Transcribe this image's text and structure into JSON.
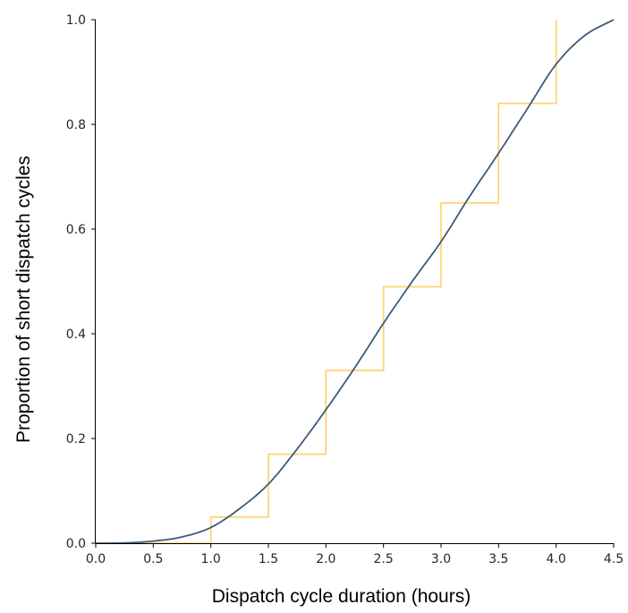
{
  "chart_data": {
    "type": "line",
    "title": "",
    "xlabel": "Dispatch cycle duration (hours)",
    "ylabel": "Proportion of short dispatch cycles",
    "xlim": [
      0.0,
      4.5
    ],
    "ylim": [
      0.0,
      1.0
    ],
    "x_ticks": [
      "0.0",
      "0.5",
      "1.0",
      "1.5",
      "2.0",
      "2.5",
      "3.0",
      "3.5",
      "4.0",
      "4.5"
    ],
    "y_ticks": [
      "0.0",
      "0.2",
      "0.4",
      "0.6",
      "0.8",
      "1.0"
    ],
    "grid": false,
    "series": [
      {
        "type": "step",
        "color": "#ffd166",
        "x": [
          0.0,
          1.0,
          1.0,
          1.5,
          1.5,
          2.0,
          2.0,
          2.5,
          2.5,
          3.0,
          3.0,
          3.5,
          3.5,
          4.0,
          4.0
        ],
        "y": [
          0.0,
          0.0,
          0.05,
          0.05,
          0.17,
          0.17,
          0.33,
          0.33,
          0.49,
          0.49,
          0.65,
          0.65,
          0.84,
          0.84,
          1.0
        ]
      },
      {
        "type": "line",
        "color": "#3d5a7a",
        "x": [
          0.0,
          0.25,
          0.5,
          0.75,
          1.0,
          1.25,
          1.5,
          1.75,
          2.0,
          2.25,
          2.5,
          2.75,
          3.0,
          3.25,
          3.5,
          3.75,
          4.0,
          4.25,
          4.5
        ],
        "y": [
          0.0,
          0.0005,
          0.004,
          0.012,
          0.03,
          0.066,
          0.113,
          0.18,
          0.255,
          0.335,
          0.42,
          0.5,
          0.576,
          0.663,
          0.745,
          0.83,
          0.915,
          0.97,
          1.0
        ]
      }
    ]
  }
}
